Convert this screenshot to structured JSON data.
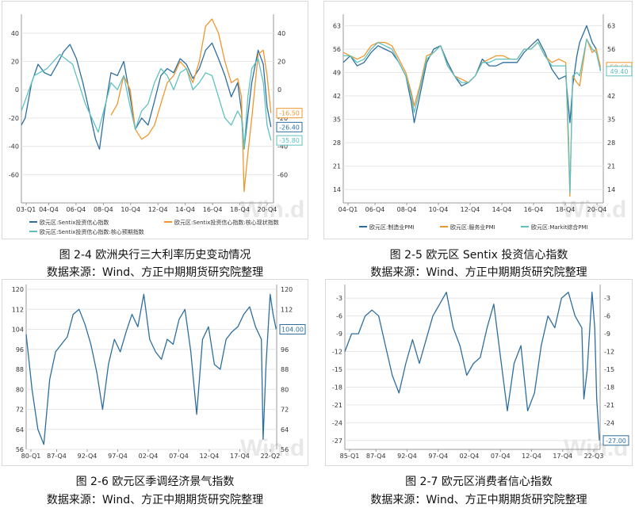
{
  "figures": [
    {
      "caption": "图 2-4 欧洲央行三大利率历史变动情况",
      "source": "数据来源：Wind、方正中期期货研究院整理"
    },
    {
      "caption": "图 2-5 欧元区 Sentix 投资信心指数",
      "source": "数据来源：Wind、方正中期期货研究院整理"
    },
    {
      "caption": "图 2-6 欧元区季调经济景气指数",
      "source": "数据来源：Wind、方正中期期货研究院整理"
    },
    {
      "caption": "图 2-7 欧元区消费者信心指数",
      "source": "数据来源：Wind、方正中期期货研究院整理"
    }
  ],
  "watermark": "Win.d",
  "chart_data": [
    {
      "type": "line",
      "x_ticks": [
        "03-Q1",
        "04-Q4",
        "06-Q4",
        "08-Q4",
        "10-Q4",
        "12-Q4",
        "14-Q4",
        "16-Q4",
        "18-Q4",
        "20-Q4"
      ],
      "xlim": [
        2003.0,
        2022.7
      ],
      "ylim": [
        -80,
        50
      ],
      "y_ticks": [
        40,
        20,
        0,
        -20,
        -40,
        -60
      ],
      "y_right_ticks": [
        40,
        20,
        0,
        -20,
        -40,
        -60
      ],
      "legend": "bottom",
      "series": [
        {
          "name": "欧元区:Sentix投资信心指数",
          "color": "#2e6e9e",
          "last_label": "-26.40",
          "x": [
            2003.0,
            2003.3,
            2003.8,
            2004.3,
            2004.8,
            2005.3,
            2005.8,
            2006.3,
            2006.8,
            2007.3,
            2007.8,
            2008.3,
            2008.8,
            2009.1,
            2009.5,
            2010.0,
            2010.5,
            2011.0,
            2011.5,
            2011.9,
            2012.4,
            2012.9,
            2013.4,
            2013.9,
            2014.4,
            2014.9,
            2015.4,
            2015.9,
            2016.4,
            2016.9,
            2017.4,
            2017.9,
            2018.4,
            2018.9,
            2019.4,
            2019.9,
            2020.2,
            2020.4,
            2020.7,
            2021.0,
            2021.5,
            2021.9,
            2022.2,
            2022.5
          ],
          "values": [
            -25,
            -20,
            5,
            18,
            12,
            10,
            18,
            27,
            32,
            22,
            5,
            -15,
            -35,
            -42,
            -15,
            12,
            10,
            20,
            -5,
            -28,
            -20,
            -25,
            -8,
            10,
            15,
            12,
            22,
            18,
            8,
            15,
            28,
            33,
            22,
            10,
            -5,
            5,
            -15,
            -42,
            -18,
            5,
            28,
            18,
            -12,
            -26.4
          ]
        },
        {
          "name": "欧元区:Sentix投资信心指数:核心现状指数",
          "color": "#f0962e",
          "last_label": "-16.50",
          "x": [
            2010.0,
            2010.5,
            2011.0,
            2011.5,
            2011.9,
            2012.4,
            2012.9,
            2013.4,
            2013.9,
            2014.4,
            2014.9,
            2015.4,
            2015.9,
            2016.4,
            2016.9,
            2017.4,
            2017.9,
            2018.4,
            2018.9,
            2019.4,
            2019.9,
            2020.2,
            2020.4,
            2020.7,
            2021.0,
            2021.5,
            2021.9,
            2022.2,
            2022.5
          ],
          "values": [
            -18,
            -10,
            10,
            0,
            -28,
            -35,
            -32,
            -25,
            -10,
            5,
            10,
            20,
            15,
            5,
            20,
            45,
            50,
            40,
            20,
            5,
            8,
            -5,
            -72,
            -45,
            -20,
            25,
            28,
            10,
            -16.5
          ]
        },
        {
          "name": "欧元区:Sentix投资信心指数:核心预期指数",
          "color": "#5fc1c1",
          "last_label": "-35.80",
          "x": [
            2003.0,
            2004.0,
            2005.0,
            2006.0,
            2007.0,
            2008.0,
            2009.0,
            2010.0,
            2010.5,
            2011.0,
            2011.5,
            2011.9,
            2012.4,
            2012.9,
            2013.4,
            2013.9,
            2014.4,
            2014.9,
            2015.4,
            2015.9,
            2016.4,
            2016.9,
            2017.4,
            2017.9,
            2018.4,
            2018.9,
            2019.4,
            2019.9,
            2020.2,
            2020.4,
            2020.7,
            2021.0,
            2021.5,
            2021.9,
            2022.2,
            2022.5
          ],
          "values": [
            -15,
            10,
            15,
            25,
            18,
            -10,
            -30,
            5,
            0,
            10,
            -12,
            -28,
            -15,
            -10,
            5,
            15,
            10,
            0,
            12,
            15,
            0,
            5,
            12,
            10,
            -5,
            -20,
            -25,
            -15,
            -20,
            -42,
            -5,
            15,
            22,
            5,
            -25,
            -35.8
          ]
        }
      ]
    },
    {
      "type": "line",
      "x_ticks": [
        "04-Q1",
        "06-Q4",
        "08-Q4",
        "10-Q4",
        "12-Q4",
        "14-Q4",
        "16-Q4",
        "18-Q4",
        "20-Q4"
      ],
      "xlim": [
        2004.0,
        2022.7
      ],
      "ylim": [
        10,
        65
      ],
      "y_ticks": [
        63,
        56,
        49,
        42,
        35,
        28,
        21,
        14
      ],
      "y_right_ticks": [
        63,
        56,
        49,
        42,
        35,
        28,
        21,
        14
      ],
      "legend": "bottom",
      "series": [
        {
          "name": "欧元区:制造业PMI",
          "color": "#2e6e9e",
          "last_label": "49.60",
          "x": [
            2004.0,
            2004.5,
            2005.0,
            2005.5,
            2006.0,
            2006.5,
            2007.0,
            2007.5,
            2008.0,
            2008.5,
            2008.9,
            2009.1,
            2009.5,
            2010.0,
            2010.5,
            2011.0,
            2011.5,
            2012.0,
            2012.5,
            2013.0,
            2013.5,
            2014.0,
            2014.5,
            2015.0,
            2015.5,
            2016.0,
            2016.5,
            2017.0,
            2017.5,
            2018.0,
            2018.5,
            2019.0,
            2019.5,
            2020.0,
            2020.3,
            2020.5,
            2020.8,
            2021.0,
            2021.5,
            2021.9,
            2022.2,
            2022.5
          ],
          "values": [
            52,
            54,
            51,
            52,
            55,
            57,
            56,
            55,
            52,
            48,
            40,
            34,
            42,
            52,
            56,
            57,
            52,
            48,
            45,
            46,
            48,
            53,
            51,
            51,
            52,
            52,
            52,
            55,
            57,
            59,
            55,
            50,
            47,
            48,
            34,
            45,
            54,
            58,
            63,
            58,
            56,
            49.6
          ]
        },
        {
          "name": "欧元区:服务业PMI",
          "color": "#f0962e",
          "last_label": "50.60",
          "x": [
            2004.0,
            2004.5,
            2005.0,
            2005.5,
            2006.0,
            2006.5,
            2007.0,
            2007.5,
            2008.0,
            2008.5,
            2008.9,
            2009.1,
            2009.5,
            2010.0,
            2010.5,
            2011.0,
            2011.5,
            2012.0,
            2012.5,
            2013.0,
            2013.5,
            2014.0,
            2014.5,
            2015.0,
            2015.5,
            2016.0,
            2016.5,
            2017.0,
            2017.5,
            2018.0,
            2018.5,
            2019.0,
            2019.5,
            2020.0,
            2020.2,
            2020.3,
            2020.5,
            2020.8,
            2021.0,
            2021.5,
            2021.9,
            2022.2,
            2022.5
          ],
          "values": [
            55,
            54,
            53,
            54,
            57,
            58,
            58,
            57,
            53,
            49,
            43,
            39,
            45,
            54,
            55,
            57,
            51,
            48,
            47,
            46,
            48,
            52,
            53,
            54,
            54,
            53,
            53,
            56,
            56,
            58,
            54,
            52,
            53,
            52,
            26,
            12,
            48,
            46,
            45,
            59,
            55,
            56,
            50.6
          ]
        },
        {
          "name": "欧元区:Markit综合PMI",
          "color": "#5fc1c1",
          "last_label": "49.40",
          "x": [
            2004.0,
            2004.5,
            2005.0,
            2005.5,
            2006.0,
            2006.5,
            2007.0,
            2007.5,
            2008.0,
            2008.5,
            2008.9,
            2009.1,
            2009.5,
            2010.0,
            2010.5,
            2011.0,
            2011.5,
            2012.0,
            2012.5,
            2013.0,
            2013.5,
            2014.0,
            2014.5,
            2015.0,
            2015.5,
            2016.0,
            2016.5,
            2017.0,
            2017.5,
            2018.0,
            2018.5,
            2019.0,
            2019.5,
            2020.0,
            2020.2,
            2020.3,
            2020.5,
            2020.8,
            2021.0,
            2021.5,
            2021.9,
            2022.2,
            2022.5
          ],
          "values": [
            54,
            54,
            52,
            53,
            56,
            58,
            57,
            56,
            52,
            48,
            42,
            37,
            44,
            53,
            55,
            57,
            51,
            48,
            46,
            46,
            48,
            52,
            52,
            53,
            53,
            53,
            53,
            56,
            56,
            58,
            54,
            51,
            51,
            51,
            30,
            13,
            48,
            49,
            48,
            59,
            56,
            55,
            49.4
          ]
        }
      ]
    },
    {
      "type": "line",
      "x_ticks": [
        "80-Q1",
        "87-Q4",
        "92-Q4",
        "97-Q4",
        "02-Q4",
        "07-Q4",
        "12-Q4",
        "17-Q4",
        "22-Q2"
      ],
      "xlim": [
        1980.0,
        2022.6
      ],
      "ylim": [
        56,
        120
      ],
      "y_ticks": [
        120,
        112,
        104,
        96,
        88,
        80,
        72,
        64,
        56
      ],
      "y_right_ticks": [
        120,
        112,
        104,
        96,
        88,
        80,
        72,
        64,
        56
      ],
      "series": [
        {
          "name": "欧元区季调经济景气指数",
          "color": "#2e6e9e",
          "last_label": "104.00",
          "x": [
            1980.0,
            1981.0,
            1982.0,
            1983.0,
            1984.0,
            1985.0,
            1986.0,
            1987.0,
            1988.0,
            1989.0,
            1990.0,
            1991.0,
            1992.0,
            1993.0,
            1994.0,
            1995.0,
            1996.0,
            1997.0,
            1998.0,
            1999.0,
            2000.0,
            2001.0,
            2002.0,
            2003.0,
            2004.0,
            2005.0,
            2006.0,
            2007.0,
            2008.0,
            2009.0,
            2010.0,
            2011.0,
            2012.0,
            2013.0,
            2014.0,
            2015.0,
            2016.0,
            2017.0,
            2018.0,
            2019.0,
            2020.0,
            2020.3,
            2020.8,
            2021.5,
            2022.0,
            2022.5
          ],
          "values": [
            102,
            80,
            64,
            58,
            84,
            95,
            98,
            101,
            110,
            112,
            106,
            98,
            87,
            72,
            90,
            100,
            95,
            103,
            110,
            105,
            118,
            100,
            95,
            92,
            100,
            98,
            108,
            112,
            95,
            70,
            100,
            105,
            90,
            88,
            100,
            103,
            105,
            110,
            113,
            105,
            100,
            60,
            90,
            118,
            110,
            104
          ]
        }
      ]
    },
    {
      "type": "line",
      "x_ticks": [
        "85-Q1",
        "87-Q4",
        "92-Q4",
        "97-Q4",
        "02-Q4",
        "07-Q4",
        "12-Q4",
        "17-Q4",
        "22-Q3"
      ],
      "xlim": [
        1985.0,
        2022.7
      ],
      "ylim": [
        -28.5,
        -1.5
      ],
      "y_ticks": [
        -3,
        -6,
        -9,
        -12,
        -15,
        -18,
        -21,
        -24,
        -27
      ],
      "y_right_ticks": [
        -3,
        -6,
        -9,
        -12,
        -15,
        -18,
        -21,
        -24,
        -27
      ],
      "series": [
        {
          "name": "欧元区消费者信心指数",
          "color": "#2e6e9e",
          "last_label": "-27.00",
          "x": [
            1985.0,
            1986.0,
            1987.0,
            1988.0,
            1989.0,
            1990.0,
            1991.0,
            1992.0,
            1993.0,
            1994.0,
            1995.0,
            1996.0,
            1997.0,
            1998.0,
            1999.0,
            2000.0,
            2001.0,
            2002.0,
            2003.0,
            2004.0,
            2005.0,
            2006.0,
            2007.0,
            2008.0,
            2009.0,
            2010.0,
            2011.0,
            2012.0,
            2013.0,
            2014.0,
            2015.0,
            2016.0,
            2017.0,
            2018.0,
            2019.0,
            2020.0,
            2020.3,
            2020.8,
            2021.5,
            2021.9,
            2022.2,
            2022.6
          ],
          "values": [
            -12,
            -9,
            -9,
            -6,
            -5,
            -6,
            -11,
            -16,
            -19,
            -14,
            -10,
            -14,
            -10,
            -6,
            -4,
            -2,
            -8,
            -11,
            -16,
            -14,
            -13,
            -8,
            -4,
            -13,
            -22,
            -14,
            -11,
            -22,
            -19,
            -11,
            -6,
            -8,
            -3,
            -2,
            -6,
            -8,
            -20,
            -15,
            -2,
            -8,
            -20,
            -27
          ]
        }
      ]
    }
  ]
}
